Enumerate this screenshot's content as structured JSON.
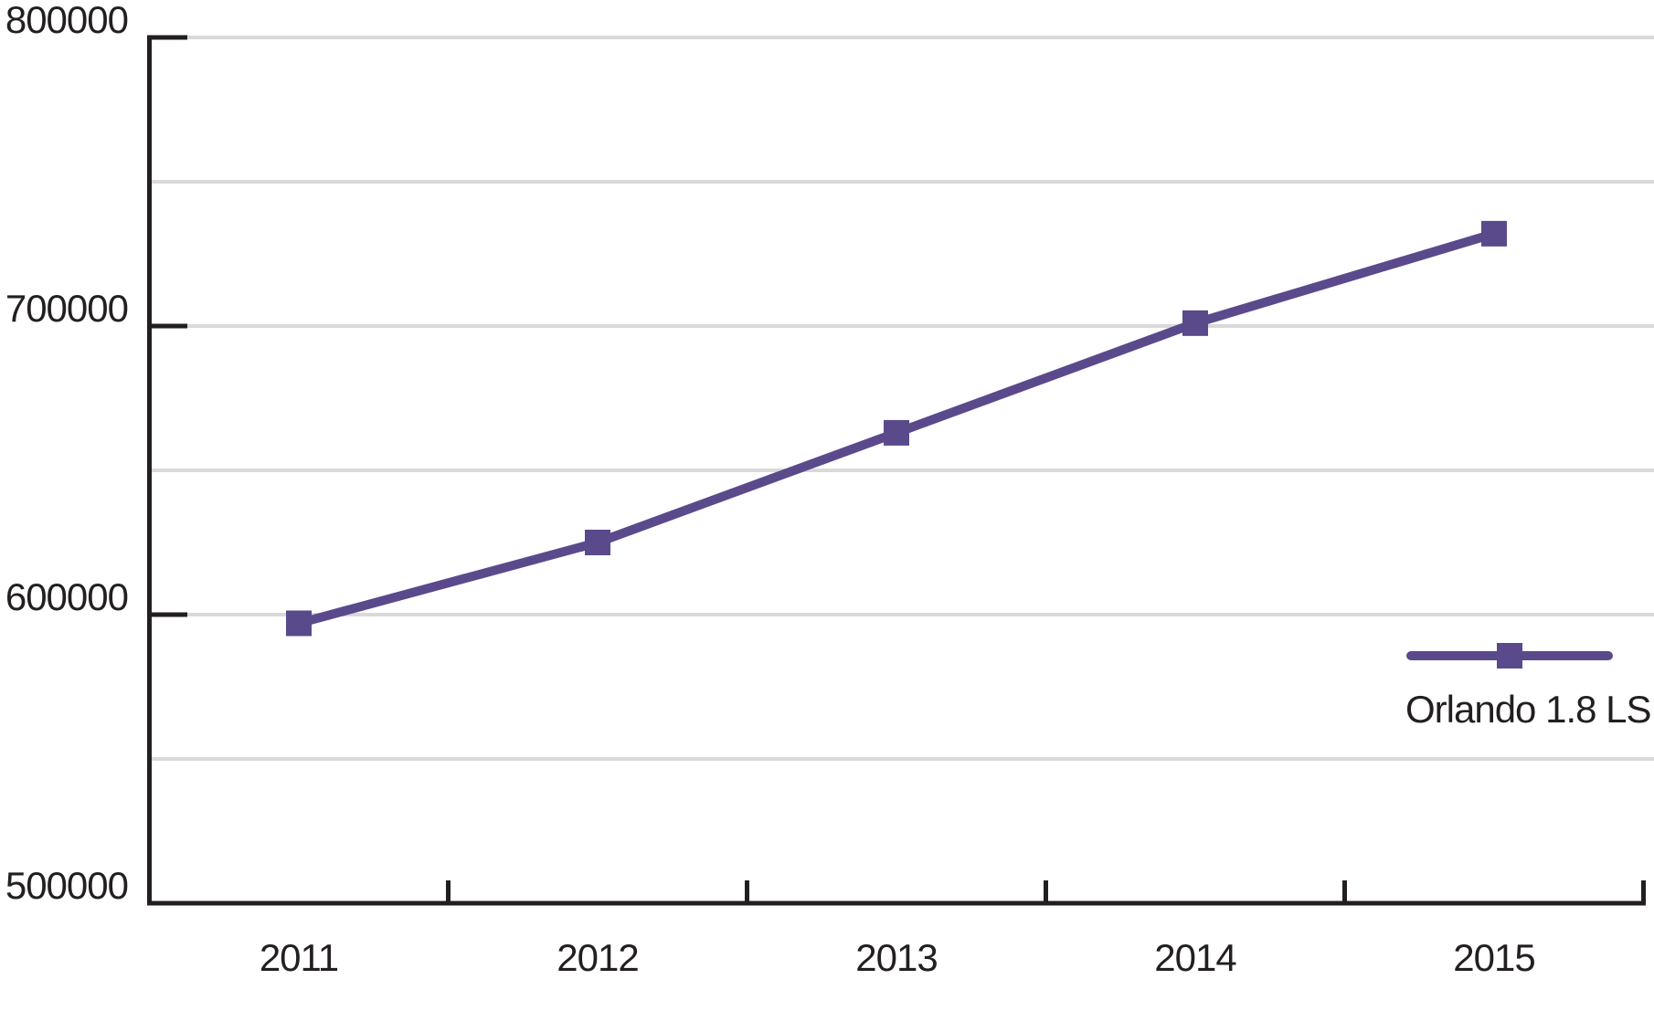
{
  "page": {
    "background": "#ffffff"
  },
  "chart_data": {
    "type": "line",
    "title": "",
    "xlabel": "",
    "ylabel": "",
    "categories": [
      "2011",
      "2012",
      "2013",
      "2014",
      "2015"
    ],
    "series": [
      {
        "name": "Orlando 1.8 LS",
        "values": [
          597000,
          625000,
          663000,
          701000,
          732000
        ],
        "color": "#5a4a8c",
        "marker": "square"
      }
    ],
    "ylim": [
      500000,
      800000
    ],
    "ytick_interval": 100000,
    "gridline_interval": 50000,
    "grid": "horizontal",
    "yticklabels": [
      "800000",
      "700000",
      "600000",
      "500000"
    ],
    "legend_position": "right-center",
    "axis_color": "#231f20",
    "grid_color": "#d9d9d9",
    "text_color": "#231f20"
  },
  "legend": {
    "label": "Orlando 1.8 LS"
  }
}
